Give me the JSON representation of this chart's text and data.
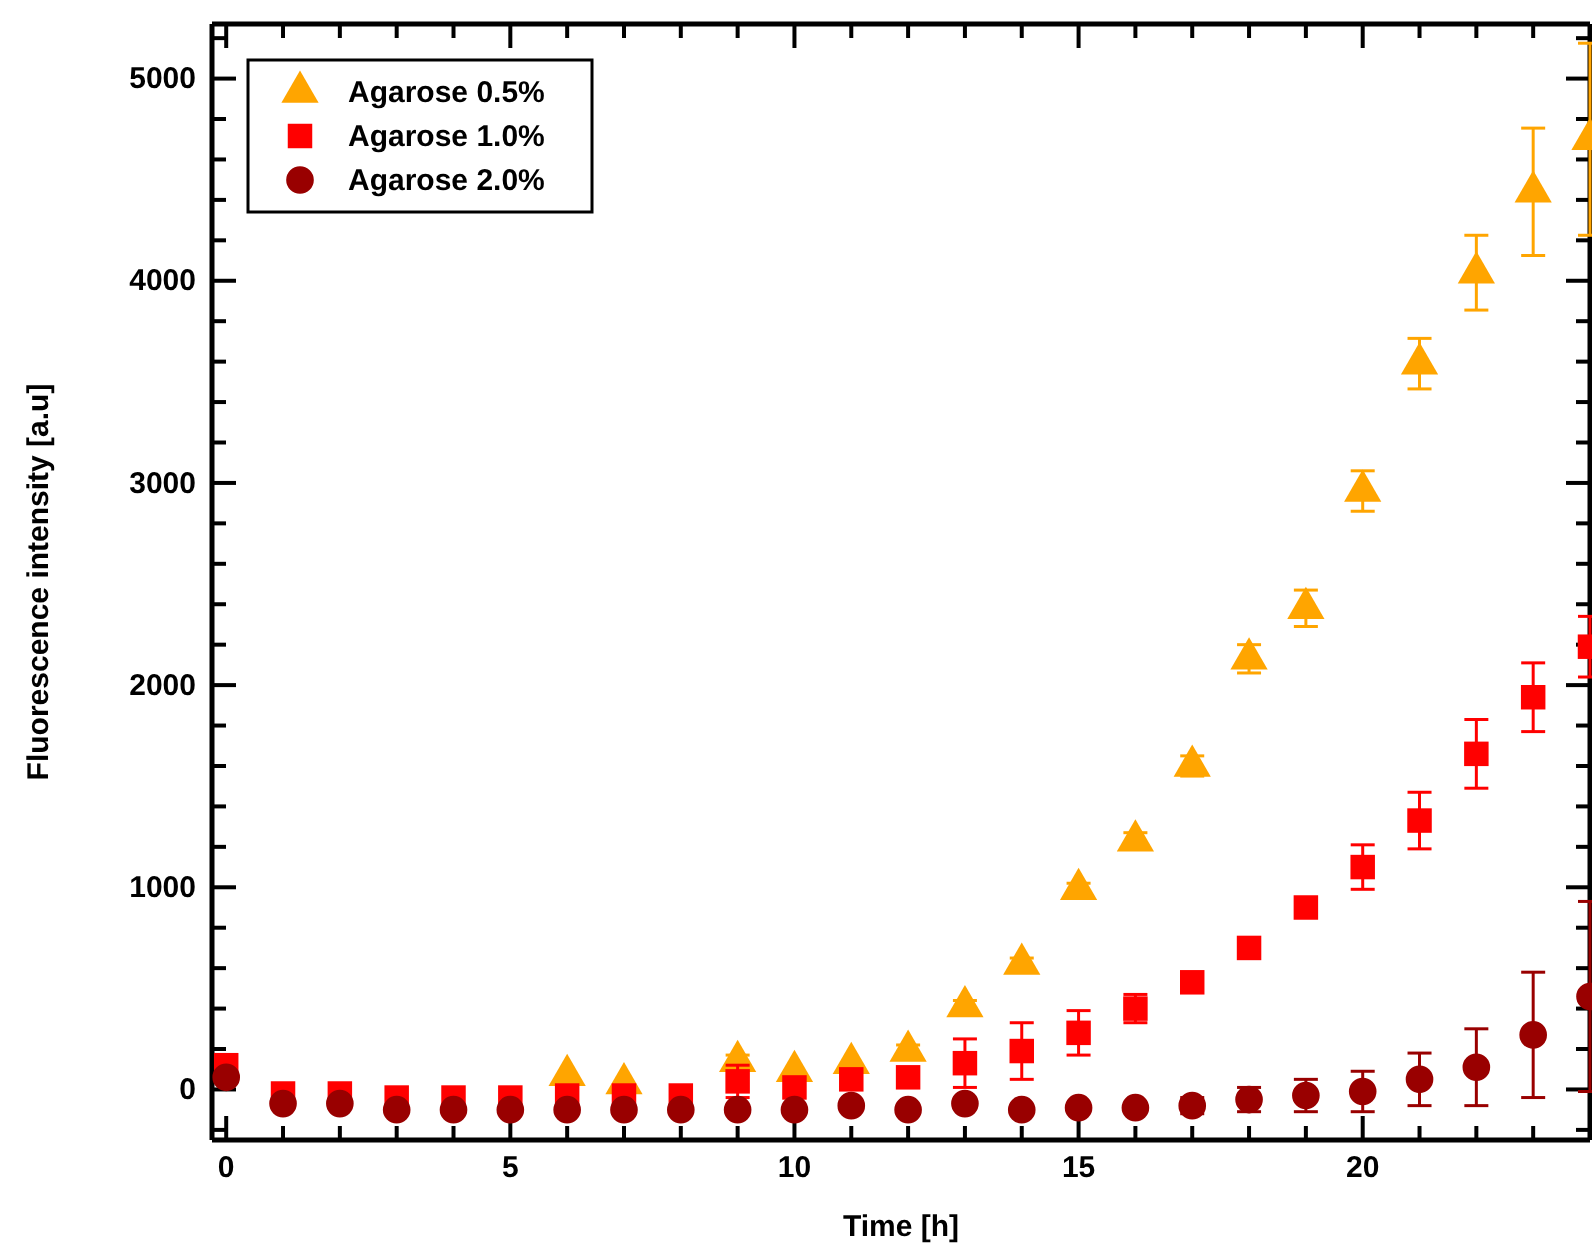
{
  "chart_data": {
    "type": "scatter",
    "xlabel": "Time [h]",
    "ylabel": "Fluorescence intensity [a.u]",
    "x": [
      0,
      1,
      2,
      3,
      4,
      5,
      6,
      7,
      8,
      9,
      10,
      11,
      12,
      13,
      14,
      15,
      16,
      17,
      18,
      19,
      20,
      21,
      22,
      23,
      24
    ],
    "xlim": [
      -0.25,
      24
    ],
    "ylim": [
      -250,
      5270
    ],
    "xticks": [
      0,
      {
        "value": 1,
        "label": null
      },
      {
        "value": 2,
        "label": null
      },
      {
        "value": 3,
        "label": null
      },
      {
        "value": 4,
        "label": null
      },
      5,
      {
        "value": 6,
        "label": null
      },
      {
        "value": 7,
        "label": null
      },
      {
        "value": 8,
        "label": null
      },
      {
        "value": 9,
        "label": null
      },
      10,
      {
        "value": 11,
        "label": null
      },
      {
        "value": 12,
        "label": null
      },
      {
        "value": 13,
        "label": null
      },
      {
        "value": 14,
        "label": null
      },
      15,
      {
        "value": 16,
        "label": null
      },
      {
        "value": 17,
        "label": null
      },
      {
        "value": 18,
        "label": null
      },
      {
        "value": 19,
        "label": null
      },
      20,
      {
        "value": 21,
        "label": null
      },
      {
        "value": 22,
        "label": null
      },
      {
        "value": 23,
        "label": null
      },
      {
        "value": 24,
        "label": null
      }
    ],
    "yticks": [
      {
        "value": -200,
        "label": null
      },
      0,
      {
        "value": 200,
        "label": null
      },
      {
        "value": 400,
        "label": null
      },
      {
        "value": 600,
        "label": null
      },
      {
        "value": 800,
        "label": null
      },
      1000,
      {
        "value": 1200,
        "label": null
      },
      {
        "value": 1400,
        "label": null
      },
      {
        "value": 1600,
        "label": null
      },
      {
        "value": 1800,
        "label": null
      },
      2000,
      {
        "value": 2200,
        "label": null
      },
      {
        "value": 2400,
        "label": null
      },
      {
        "value": 2600,
        "label": null
      },
      {
        "value": 2800,
        "label": null
      },
      3000,
      {
        "value": 3200,
        "label": null
      },
      {
        "value": 3400,
        "label": null
      },
      {
        "value": 3600,
        "label": null
      },
      {
        "value": 3800,
        "label": null
      },
      4000,
      {
        "value": 4200,
        "label": null
      },
      {
        "value": 4400,
        "label": null
      },
      {
        "value": 4600,
        "label": null
      },
      {
        "value": 4800,
        "label": null
      },
      5000,
      {
        "value": 5200,
        "label": null
      }
    ],
    "grid": false,
    "legend": "top left",
    "series": [
      {
        "name": "Agarose 0.5%",
        "color": "#ffa500",
        "marker": "triangle",
        "values": [
          null,
          null,
          null,
          null,
          null,
          null,
          70,
          30,
          null,
          140,
          90,
          130,
          190,
          410,
          620,
          990,
          1230,
          1600,
          2130,
          2380,
          2960,
          3590,
          4040,
          4440,
          4700
        ],
        "errors": [
          null,
          null,
          null,
          null,
          null,
          null,
          null,
          null,
          null,
          30,
          null,
          null,
          30,
          30,
          30,
          30,
          40,
          50,
          70,
          90,
          100,
          125,
          185,
          315,
          475
        ]
      },
      {
        "name": "Agarose 1.0%",
        "color": "#ff0000",
        "marker": "square",
        "values": [
          120,
          -20,
          -20,
          -40,
          -40,
          -40,
          -30,
          -30,
          -30,
          40,
          10,
          50,
          60,
          130,
          190,
          280,
          400,
          530,
          700,
          900,
          1100,
          1330,
          1660,
          1940,
          2190
        ],
        "errors": [
          null,
          null,
          null,
          null,
          null,
          null,
          null,
          null,
          null,
          80,
          null,
          null,
          null,
          120,
          140,
          110,
          70,
          null,
          null,
          null,
          110,
          140,
          170,
          170,
          150
        ]
      },
      {
        "name": "Agarose 2.0%",
        "color": "#990000",
        "marker": "circle",
        "values": [
          60,
          -70,
          -70,
          -100,
          -100,
          -100,
          -100,
          -100,
          -100,
          -100,
          -100,
          -80,
          -100,
          -70,
          -100,
          -90,
          -90,
          -80,
          -50,
          -30,
          -10,
          50,
          110,
          270,
          460
        ],
        "errors": [
          null,
          null,
          null,
          null,
          null,
          null,
          null,
          null,
          null,
          null,
          null,
          null,
          null,
          null,
          null,
          null,
          null,
          40,
          60,
          80,
          100,
          130,
          190,
          310,
          470
        ]
      }
    ]
  }
}
